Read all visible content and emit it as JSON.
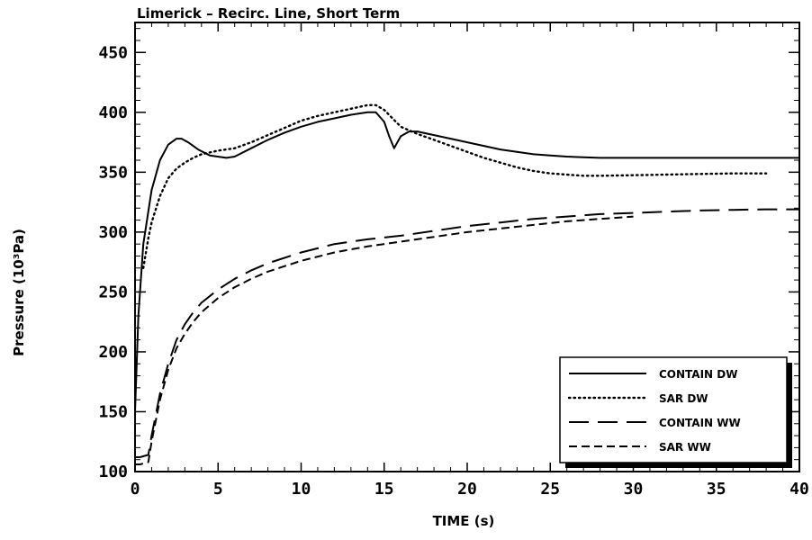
{
  "chart_data": {
    "type": "line",
    "title": "Limerick – Recirc. Line, Short Term",
    "xlabel": "TIME (s)",
    "ylabel": "Pressure (10³Pa)",
    "xlim": [
      0,
      40
    ],
    "ylim": [
      100,
      475
    ],
    "xticks": [
      0,
      5,
      10,
      15,
      20,
      25,
      30,
      35,
      40
    ],
    "xtick_labels": [
      "0",
      "5",
      "10",
      "15",
      "20",
      "25",
      "30",
      "35",
      "40"
    ],
    "yticks": [
      100,
      150,
      200,
      250,
      300,
      350,
      400,
      450
    ],
    "ytick_labels": [
      "100",
      "150",
      "200",
      "250",
      "300",
      "350",
      "400",
      "450"
    ],
    "grid": false,
    "legend_position": "bottom-right",
    "series": [
      {
        "name": "CONTAIN DW",
        "style": "solid",
        "x": [
          0,
          0.2,
          0.5,
          1,
          1.5,
          2,
          2.5,
          2.8,
          3.2,
          3.8,
          4.5,
          5.5,
          6,
          7,
          8,
          9,
          10,
          11,
          12,
          13,
          14,
          14.5,
          15,
          15.3,
          15.6,
          16,
          16.5,
          17,
          18,
          19,
          20,
          21,
          22,
          23,
          24,
          25,
          26,
          27,
          28,
          30,
          32,
          34,
          36,
          38,
          40
        ],
        "y": [
          150,
          230,
          290,
          335,
          360,
          373,
          378,
          378,
          375,
          369,
          364,
          362,
          363,
          370,
          377,
          383,
          388,
          392,
          395,
          398,
          400,
          400,
          392,
          380,
          370,
          380,
          384,
          384,
          381,
          378,
          375,
          372,
          369,
          367,
          365,
          364,
          363,
          362.5,
          362,
          362,
          362,
          362,
          362,
          362,
          362
        ]
      },
      {
        "name": "SAR DW",
        "style": "dotted",
        "x": [
          0.5,
          0.8,
          1,
          1.5,
          2,
          2.5,
          3,
          3.5,
          4,
          5,
          6,
          7,
          8,
          9,
          10,
          11,
          12,
          13,
          14,
          14.5,
          15,
          15.5,
          16,
          17,
          18,
          19,
          20,
          21,
          22,
          23,
          24,
          25,
          26,
          27,
          28,
          30,
          32,
          34,
          36,
          38
        ],
        "y": [
          270,
          295,
          308,
          330,
          345,
          353,
          358,
          362,
          365,
          368,
          370,
          375,
          381,
          387,
          393,
          397,
          400,
          403,
          406,
          406,
          402,
          395,
          388,
          382,
          377,
          372,
          367,
          362,
          358,
          354,
          351,
          349,
          348,
          347,
          347,
          347.5,
          348,
          348.5,
          349,
          349
        ]
      },
      {
        "name": "CONTAIN WW",
        "style": "long-dash",
        "x": [
          0,
          0.3,
          0.8,
          1,
          1.5,
          2,
          2.5,
          3,
          3.5,
          4,
          5,
          6,
          7,
          8,
          10,
          12,
          14,
          16,
          18,
          20,
          22,
          24,
          26,
          28,
          30,
          32,
          34,
          36,
          38,
          40
        ],
        "y": [
          112,
          112,
          114,
          130,
          165,
          190,
          210,
          223,
          233,
          241,
          252,
          261,
          268,
          274,
          283,
          290,
          294,
          297,
          301,
          305,
          308,
          311,
          313,
          315,
          316,
          317,
          318,
          318.5,
          319,
          319
        ]
      },
      {
        "name": "SAR WW",
        "style": "short-dash",
        "x": [
          0,
          0.3,
          0.8,
          1,
          1.5,
          2,
          2.5,
          3,
          3.5,
          4,
          5,
          6,
          7,
          8,
          10,
          12,
          14,
          16,
          18,
          20,
          22,
          24,
          26,
          28,
          30
        ],
        "y": [
          106,
          106,
          108,
          125,
          160,
          185,
          203,
          215,
          225,
          233,
          245,
          254,
          261,
          267,
          276,
          283,
          288,
          292,
          296,
          300,
          303,
          306,
          309,
          311,
          313
        ]
      }
    ]
  }
}
